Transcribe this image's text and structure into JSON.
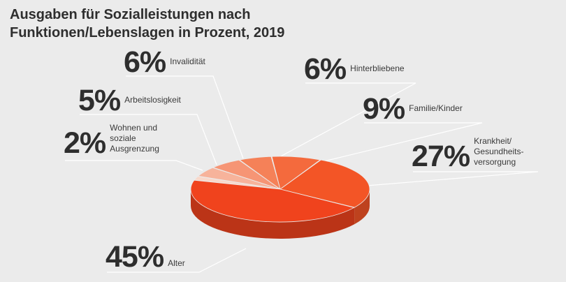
{
  "title_lines": [
    "Ausgaben für Sozialleistungen nach",
    "Funktionen/Lebenslagen in Prozent, 2019"
  ],
  "chart_data": {
    "type": "pie",
    "title": "Ausgaben für Sozialleistungen nach Funktionen/Lebenslagen in Prozent, 2019",
    "unit": "%",
    "slices": [
      {
        "key": "alter",
        "label": "Alter",
        "label_lines": [
          "Alter"
        ],
        "value": 45,
        "color": "#f0431d"
      },
      {
        "key": "krankheit",
        "label": "Krankheit/ Gesundheits-versorgung",
        "label_lines": [
          "Krankheit/",
          "Gesundheits-",
          "versorgung"
        ],
        "value": 27,
        "color": "#f35526"
      },
      {
        "key": "familie",
        "label": "Familie/Kinder",
        "label_lines": [
          "Familie/Kinder"
        ],
        "value": 9,
        "color": "#f46a3d"
      },
      {
        "key": "hinterbliebene",
        "label": "Hinterbliebene",
        "label_lines": [
          "Hinterbliebene"
        ],
        "value": 6,
        "color": "#f58158"
      },
      {
        "key": "invaliditaet",
        "label": "Invalidität",
        "label_lines": [
          "Invalidität"
        ],
        "value": 6,
        "color": "#f69575"
      },
      {
        "key": "arbeitslosigkeit",
        "label": "Arbeitslosigkeit",
        "label_lines": [
          "Arbeitslosigkeit"
        ],
        "value": 5,
        "color": "#f7b39b"
      },
      {
        "key": "wohnen",
        "label": "Wohnen und soziale Ausgrenzung",
        "label_lines": [
          "Wohnen und",
          "soziale",
          "Ausgrenzung"
        ],
        "value": 2,
        "color": "#f9d8ca"
      }
    ],
    "percent_labels": [
      "45%",
      "27%",
      "9%",
      "6%",
      "6%",
      "5%",
      "2%"
    ]
  }
}
